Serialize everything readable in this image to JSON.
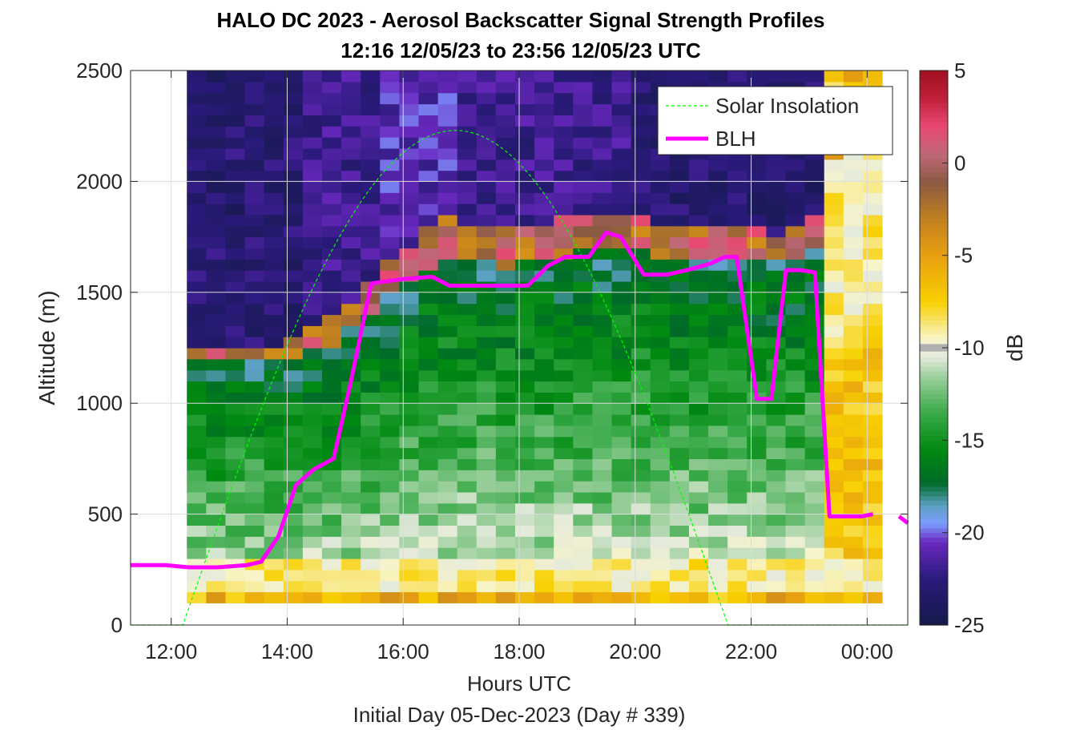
{
  "chart_data": {
    "type": "heatmap",
    "title": "HALO DC 2023 - Aerosol Backscatter Signal Strength Profiles",
    "subtitle": "12:16 12/05/23 to 23:56 12/05/23  UTC",
    "xlabel": "Hours UTC",
    "xlabel2": "Initial Day 05-Dec-2023 (Day # 339)",
    "ylabel": "Altitude (m)",
    "colorbar_label": "dB",
    "xlim": [
      11.3,
      24.7
    ],
    "ylim": [
      0,
      2500
    ],
    "x_ticks": [
      12,
      14,
      16,
      18,
      20,
      22,
      24
    ],
    "x_tick_labels": [
      "12:00",
      "14:00",
      "16:00",
      "18:00",
      "20:00",
      "22:00",
      "00:00"
    ],
    "y_ticks": [
      0,
      500,
      1000,
      1500,
      2000,
      2500
    ],
    "y_tick_labels": [
      "0",
      "500",
      "1000",
      "1500",
      "2000",
      "2500"
    ],
    "clim": [
      -25,
      5
    ],
    "c_ticks": [
      -25,
      -20,
      -15,
      -10,
      -5,
      0,
      5
    ],
    "c_tick_labels": [
      "-25",
      "-20",
      "-15",
      "-10",
      "-5",
      "0",
      "5"
    ],
    "grid": true,
    "legend_position": "top-right",
    "legend": [
      "Solar Insolation",
      "BLH"
    ],
    "time_start": 12.27,
    "time_step_hours": 0.333,
    "alt_start": 100,
    "alt_step": 50,
    "profiles": [
      {
        "blh": 260,
        "pbl": 1180,
        "trans": 60,
        "top": -23
      },
      {
        "blh": 255,
        "pbl": 1190,
        "trans": 60,
        "top": -23
      },
      {
        "blh": 260,
        "pbl": 1200,
        "trans": 60,
        "top": -23
      },
      {
        "blh": 270,
        "pbl": 1190,
        "trans": 60,
        "top": -23
      },
      {
        "blh": 290,
        "pbl": 1180,
        "trans": 70,
        "top": -23
      },
      {
        "blh": 410,
        "pbl": 1200,
        "trans": 80,
        "top": -23
      },
      {
        "blh": 630,
        "pbl": 1230,
        "trans": 100,
        "top": -22
      },
      {
        "blh": 710,
        "pbl": 1270,
        "trans": 120,
        "top": -22
      },
      {
        "blh": 750,
        "pbl": 1330,
        "trans": 130,
        "top": -22
      },
      {
        "blh": 1100,
        "pbl": 1400,
        "trans": 140,
        "top": -22
      },
      {
        "blh": 1540,
        "pbl": 1500,
        "trans": 150,
        "top": -21
      },
      {
        "blh": 1560,
        "pbl": 1560,
        "trans": 160,
        "top": -21
      },
      {
        "blh": 1570,
        "pbl": 1620,
        "trans": 170,
        "top": -21
      },
      {
        "blh": 1570,
        "pbl": 1650,
        "trans": 180,
        "top": -21
      },
      {
        "blh": 1530,
        "pbl": 1640,
        "trans": 180,
        "top": -22
      },
      {
        "blh": 1530,
        "pbl": 1630,
        "trans": 180,
        "top": -22
      },
      {
        "blh": 1530,
        "pbl": 1620,
        "trans": 170,
        "top": -22
      },
      {
        "blh": 1530,
        "pbl": 1630,
        "trans": 170,
        "top": -22
      },
      {
        "blh": 1540,
        "pbl": 1640,
        "trans": 170,
        "top": -22
      },
      {
        "blh": 1620,
        "pbl": 1660,
        "trans": 170,
        "top": -22
      },
      {
        "blh": 1660,
        "pbl": 1680,
        "trans": 170,
        "top": -22
      },
      {
        "blh": 1660,
        "pbl": 1690,
        "trans": 160,
        "top": -22
      },
      {
        "blh": 1770,
        "pbl": 1700,
        "trans": 160,
        "top": -22
      },
      {
        "blh": 1750,
        "pbl": 1690,
        "trans": 150,
        "top": -23
      },
      {
        "blh": 1580,
        "pbl": 1660,
        "trans": 150,
        "top": -23
      },
      {
        "blh": 1580,
        "pbl": 1640,
        "trans": 140,
        "top": -23
      },
      {
        "blh": 1600,
        "pbl": 1640,
        "trans": 140,
        "top": -23
      },
      {
        "blh": 1630,
        "pbl": 1650,
        "trans": 140,
        "top": -23
      },
      {
        "blh": 1660,
        "pbl": 1660,
        "trans": 140,
        "top": -23
      },
      {
        "blh": 1020,
        "pbl": 1640,
        "trans": 140,
        "top": -23
      },
      {
        "blh": 1020,
        "pbl": 1630,
        "trans": 140,
        "top": -23
      },
      {
        "blh": 1600,
        "pbl": 1640,
        "trans": 140,
        "top": -23
      },
      {
        "blh": 1600,
        "pbl": 1700,
        "trans": 150,
        "top": -23
      },
      {
        "blh": 1590,
        "pbl": 2100,
        "trans": 150,
        "top": -8
      },
      {
        "blh": 490,
        "pbl": 2200,
        "trans": 150,
        "top": -6
      },
      {
        "blh": 490,
        "pbl": 2200,
        "trans": 150,
        "top": -6
      }
    ],
    "series": [
      {
        "name": "BLH",
        "color": "#ff00ff",
        "x": [
          11.3,
          11.9,
          12.3,
          12.8,
          13.3,
          13.55,
          13.85,
          14.15,
          14.45,
          14.8,
          15.1,
          15.45,
          16.0,
          16.5,
          16.8,
          17.3,
          17.9,
          18.15,
          18.5,
          18.8,
          19.2,
          19.5,
          19.75,
          20.15,
          20.55,
          20.9,
          21.3,
          21.55,
          21.75,
          22.1,
          22.35,
          22.6,
          22.85,
          23.1,
          23.35,
          23.55,
          23.9,
          24.1
        ],
        "y": [
          270,
          270,
          260,
          260,
          270,
          285,
          400,
          630,
          700,
          750,
          1100,
          1540,
          1560,
          1570,
          1530,
          1530,
          1530,
          1530,
          1620,
          1660,
          1660,
          1770,
          1750,
          1580,
          1580,
          1600,
          1630,
          1660,
          1660,
          1020,
          1020,
          1600,
          1600,
          1590,
          490,
          490,
          490,
          500
        ]
      },
      {
        "name": "BLH-right",
        "color": "#ff00ff",
        "x": [
          24.55,
          24.7
        ],
        "y": [
          490,
          460
        ]
      },
      {
        "name": "Solar Insolation",
        "color": "#00ff00",
        "sunrise": 12.2,
        "sunset": 21.6,
        "peak": 2230
      }
    ],
    "colormap": [
      {
        "v": -25,
        "c": "#141a4a"
      },
      {
        "v": -22.5,
        "c": "#2a1a7a"
      },
      {
        "v": -20.5,
        "c": "#6a28c0"
      },
      {
        "v": -19.5,
        "c": "#7c9cff"
      },
      {
        "v": -18.5,
        "c": "#5aa0c0"
      },
      {
        "v": -17.3,
        "c": "#006a2a"
      },
      {
        "v": -15.5,
        "c": "#008a10"
      },
      {
        "v": -13.5,
        "c": "#3aaa4a"
      },
      {
        "v": -11.5,
        "c": "#9ed09e"
      },
      {
        "v": -10.5,
        "c": "#e4eadc"
      },
      {
        "v": -9.5,
        "c": "#f8f4c8"
      },
      {
        "v": -7.5,
        "c": "#f8d000"
      },
      {
        "v": -5,
        "c": "#e8a010"
      },
      {
        "v": -3,
        "c": "#c08020"
      },
      {
        "v": -1,
        "c": "#8a5a42"
      },
      {
        "v": 0.5,
        "c": "#c06878"
      },
      {
        "v": 2,
        "c": "#e84870"
      },
      {
        "v": 3.5,
        "c": "#c0203a"
      },
      {
        "v": 5,
        "c": "#a01020"
      }
    ]
  }
}
